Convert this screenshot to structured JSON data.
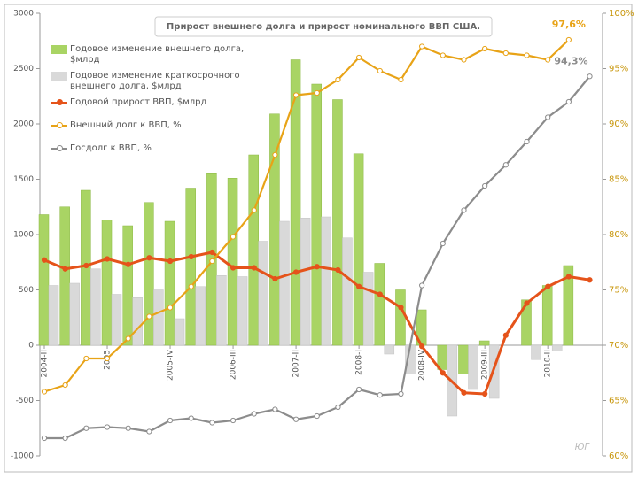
{
  "chart_data": {
    "type": "bar",
    "title": "Прирост внешнего долга  и прирост номинального ВВП США.",
    "categories": [
      "2004-II",
      null,
      null,
      "2005",
      null,
      null,
      "2005-IV",
      null,
      null,
      "2006-III",
      null,
      null,
      "2007-II",
      null,
      null,
      "2008-I",
      null,
      null,
      "2008-IV",
      null,
      null,
      "2009-III",
      null,
      null,
      "2010-II",
      null,
      null
    ],
    "ylim": [
      -1000,
      3000
    ],
    "yticks": [
      -1000,
      -500,
      0,
      500,
      1000,
      1500,
      2000,
      2500,
      3000
    ],
    "y2lim": [
      60,
      100
    ],
    "y2ticks": [
      {
        "value": 60,
        "label": "60%"
      },
      {
        "value": 65,
        "label": "65%"
      },
      {
        "value": 70,
        "label": "70%"
      },
      {
        "value": 75,
        "label": "75%"
      },
      {
        "value": 80,
        "label": "80%"
      },
      {
        "value": 85,
        "label": "85%"
      },
      {
        "value": 90,
        "label": "90%"
      },
      {
        "value": 95,
        "label": "95%"
      },
      {
        "value": 100,
        "label": "100%"
      }
    ],
    "series": [
      {
        "name": "Годовое изменение  внешнего долга, $млрд",
        "type": "bar",
        "color": "#a9d464",
        "values": [
          1180,
          1250,
          1400,
          1130,
          1080,
          1290,
          1120,
          1420,
          1550,
          1510,
          1720,
          2090,
          2580,
          2360,
          2220,
          1730,
          740,
          500,
          320,
          -220,
          -260,
          40,
          0,
          410,
          540,
          720,
          null
        ]
      },
      {
        "name": "Годовое изменение  краткосрочного внешнего долга, $млрд",
        "type": "bar",
        "color": "#d9d9d9",
        "values": [
          540,
          560,
          690,
          460,
          430,
          500,
          240,
          530,
          630,
          620,
          940,
          1120,
          1150,
          1160,
          970,
          660,
          -80,
          -260,
          0,
          -640,
          -400,
          -480,
          0,
          -130,
          -50,
          0,
          null
        ]
      },
      {
        "name": "Годовой прирост  ВВП, $млрд",
        "type": "line",
        "color": "#e5531a",
        "values": [
          770,
          690,
          720,
          780,
          730,
          790,
          760,
          800,
          840,
          700,
          700,
          600,
          660,
          710,
          680,
          530,
          460,
          340,
          -10,
          -250,
          -430,
          -440,
          90,
          380,
          530,
          620,
          590
        ]
      },
      {
        "name": "Внешний долг к ВВП, %",
        "type": "line",
        "axis": "y2",
        "color": "#e8a317",
        "values": [
          65.8,
          66.4,
          68.8,
          68.8,
          70.6,
          72.6,
          73.4,
          75.3,
          77.6,
          79.8,
          82.2,
          87.2,
          92.6,
          92.8,
          94,
          96,
          94.8,
          94,
          97,
          96.2,
          95.8,
          96.8,
          96.4,
          96.2,
          95.8,
          97.6,
          null
        ],
        "value_labels": [
          null,
          null,
          null,
          null,
          null,
          null,
          null,
          null,
          null,
          null,
          null,
          null,
          null,
          null,
          null,
          null,
          null,
          null,
          null,
          null,
          null,
          null,
          null,
          null,
          null,
          "97,6%",
          null
        ]
      },
      {
        "name": "Госдолг к ВВП, %",
        "type": "line",
        "axis": "y2",
        "color": "#8c8c8c",
        "values": [
          61.6,
          61.6,
          62.5,
          62.6,
          62.5,
          62.2,
          63.2,
          63.4,
          63,
          63.2,
          63.8,
          64.2,
          63.3,
          63.6,
          64.4,
          66,
          65.5,
          65.6,
          75.4,
          79.2,
          82.2,
          84.4,
          86.3,
          88.4,
          90.6,
          92,
          94.3
        ],
        "value_labels": [
          null,
          null,
          null,
          null,
          null,
          null,
          null,
          null,
          null,
          null,
          null,
          null,
          null,
          null,
          null,
          null,
          null,
          null,
          null,
          null,
          null,
          null,
          null,
          null,
          null,
          null,
          "94,3%"
        ]
      }
    ],
    "watermark": "ЮГ"
  }
}
